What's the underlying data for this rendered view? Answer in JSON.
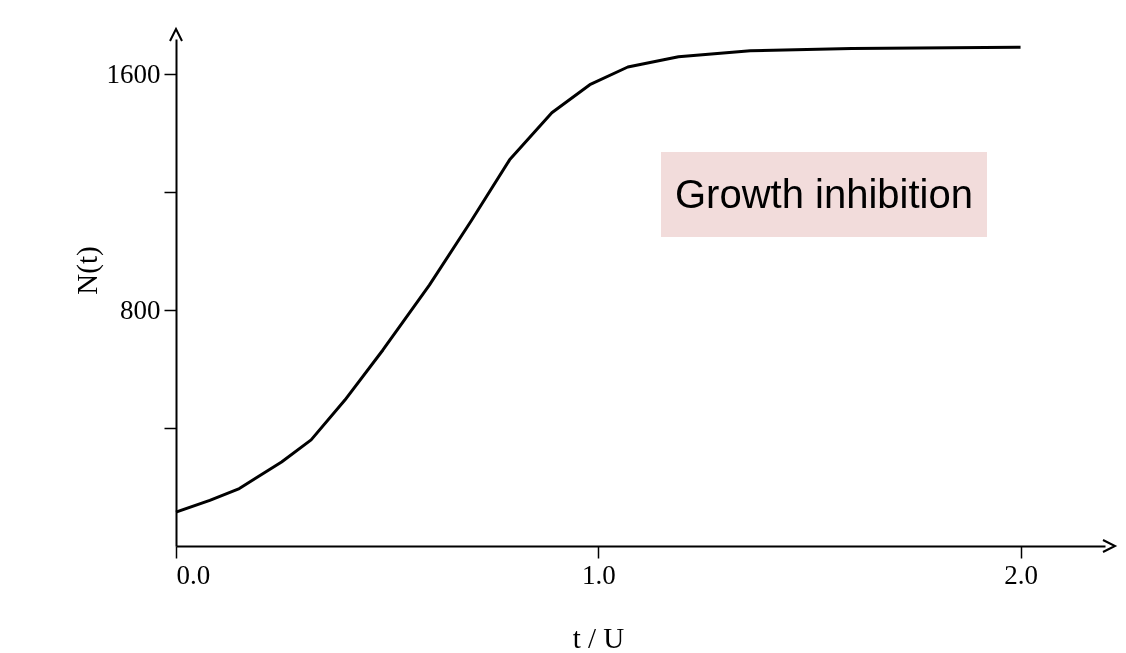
{
  "chart_data": {
    "type": "line",
    "xlabel": "t / U",
    "ylabel": "N(t)",
    "annotations": [
      "Growth inhibition"
    ],
    "x": [
      0,
      0.08,
      0.15,
      0.25,
      0.32,
      0.4,
      0.49,
      0.6,
      0.7,
      0.79,
      0.89,
      0.98,
      1.07,
      1.19,
      1.36,
      1.6,
      2.0
    ],
    "series": [
      {
        "color": "#000000",
        "values": [
          115,
          155,
          195,
          285,
          360,
          495,
          665,
          885,
          1105,
          1310,
          1470,
          1565,
          1625,
          1660,
          1680,
          1688,
          1692
        ]
      }
    ],
    "xlim": [
      0,
      2.2
    ],
    "ylim": [
      0,
      1720
    ],
    "xticks": [
      {
        "value": 0,
        "label": "0.0"
      },
      {
        "value": 1,
        "label": "1.0"
      },
      {
        "value": 2,
        "label": "2.0"
      }
    ],
    "yticks": [
      {
        "value": 400,
        "label": null
      },
      800,
      {
        "value": 1200,
        "label": null
      },
      1600
    ],
    "grid": false,
    "marker": "none",
    "line_style": "solid"
  }
}
